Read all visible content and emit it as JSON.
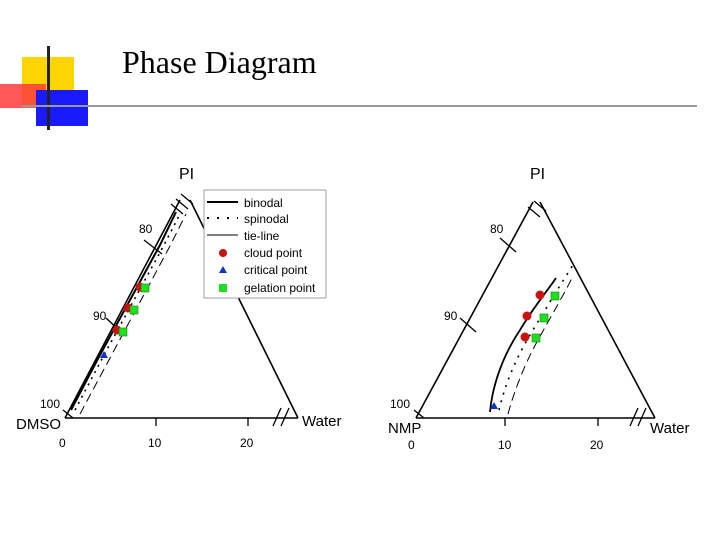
{
  "slide": {
    "title": "Phase Diagram",
    "accent_colors": {
      "yellow": "#ffd400",
      "red": "#ff2a2a",
      "blue": "#1a1aff",
      "rule": "#9a9a9a"
    }
  },
  "legend": {
    "items": [
      {
        "label": "binodal",
        "style": "solid-thick"
      },
      {
        "label": "spinodal",
        "style": "dotted"
      },
      {
        "label": "tie-line",
        "style": "solid-thin"
      },
      {
        "label": "cloud point",
        "marker": "circle",
        "color": "#cc1111"
      },
      {
        "label": "critical point",
        "marker": "triangle",
        "color": "#1133cc"
      },
      {
        "label": "gelation point",
        "marker": "square",
        "color": "#22dd22"
      }
    ]
  },
  "diagrams": [
    {
      "id": "dmso",
      "top_label": "PI",
      "left_label": "DMSO",
      "right_label": "Water",
      "left_edge_ticks": [
        "80",
        "90",
        "100"
      ],
      "bottom_ticks": [
        "0",
        "10",
        "20"
      ]
    },
    {
      "id": "nmp",
      "top_label": "PI",
      "left_label": "NMP",
      "right_label": "Water",
      "left_edge_ticks": [
        "80",
        "90",
        "100"
      ],
      "bottom_ticks": [
        "0",
        "10",
        "20"
      ]
    }
  ]
}
